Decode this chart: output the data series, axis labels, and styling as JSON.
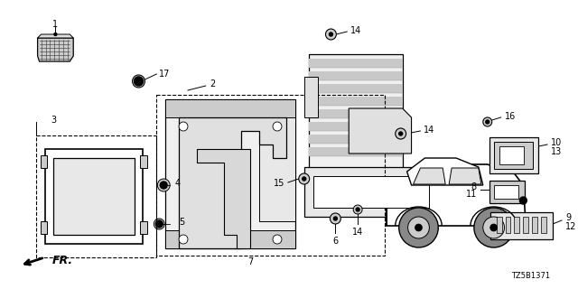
{
  "background_color": "#ffffff",
  "diagram_id": "TZ5B1371",
  "fr_label": "FR.",
  "fig_width": 6.4,
  "fig_height": 3.2,
  "dpi": 100
}
